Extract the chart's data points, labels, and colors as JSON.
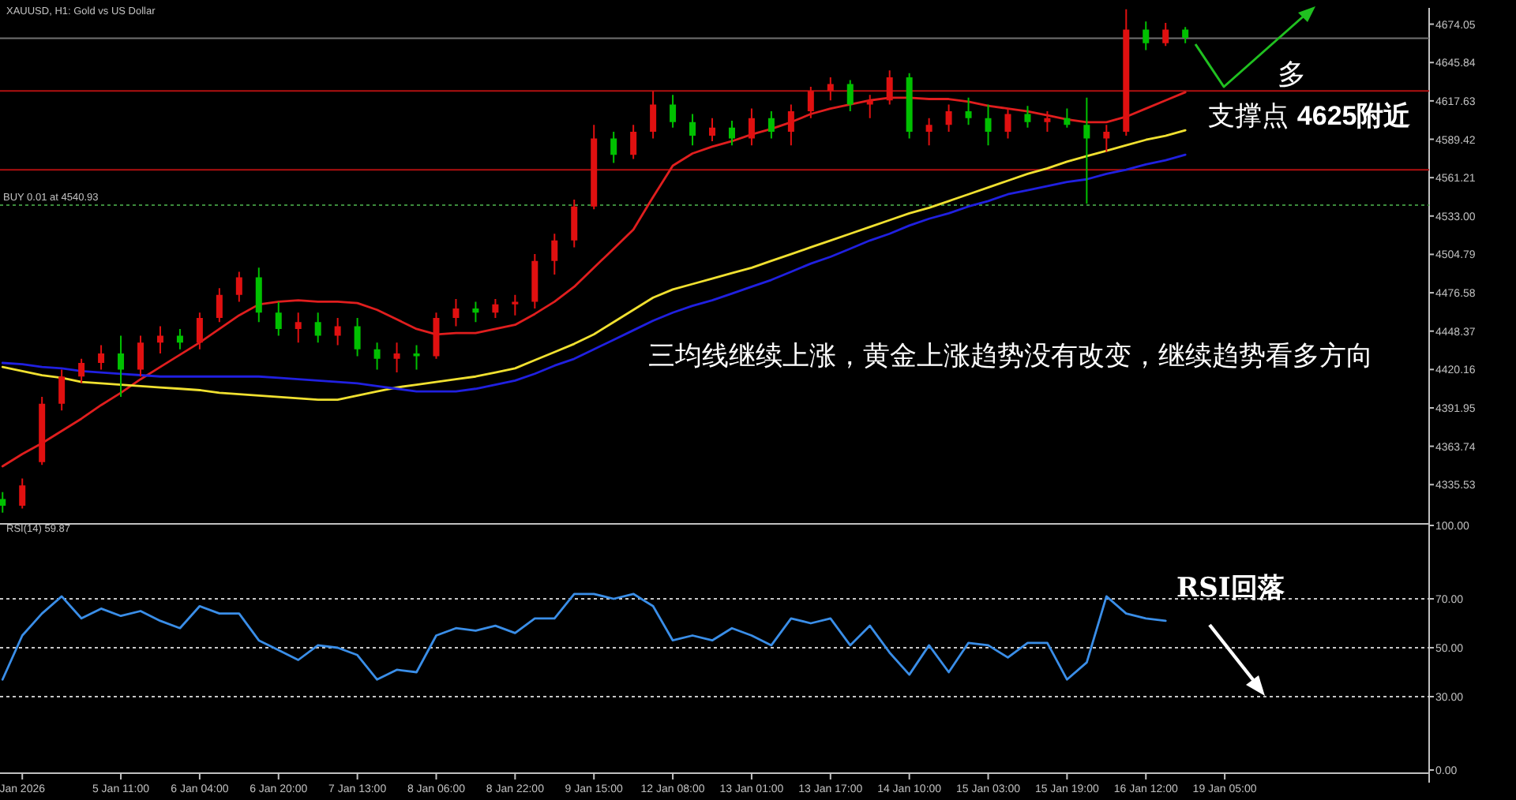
{
  "chart_data": [
    {
      "type": "candlestick",
      "title": "XAUUSD, H1:  Gold vs US Dollar",
      "categories": [
        null,
        null,
        null,
        null,
        null,
        null,
        null,
        null,
        null,
        null,
        null,
        null,
        null,
        null,
        null,
        null,
        null,
        null,
        null,
        null,
        null,
        null,
        null,
        null,
        null,
        null,
        null,
        null,
        null,
        null,
        null,
        null,
        null,
        null,
        null,
        null,
        null,
        null,
        null,
        null,
        null,
        null,
        null,
        null,
        null,
        null,
        null,
        null,
        null,
        null,
        null,
        null,
        null,
        null,
        null,
        null,
        null,
        null,
        null,
        null,
        null,
        null,
        null
      ],
      "ohlc": [
        [
          4325,
          4330,
          4315,
          4320
        ],
        [
          4320,
          4340,
          4318,
          4335
        ],
        [
          4352,
          4400,
          4350,
          4395
        ],
        [
          4395,
          4420,
          4390,
          4415
        ],
        [
          4415,
          4428,
          4410,
          4425
        ],
        [
          4425,
          4438,
          4420,
          4432
        ],
        [
          4432,
          4445,
          4400,
          4420
        ],
        [
          4420,
          4445,
          4415,
          4440
        ],
        [
          4440,
          4452,
          4432,
          4445
        ],
        [
          4445,
          4450,
          4435,
          4440
        ],
        [
          4440,
          4462,
          4435,
          4458
        ],
        [
          4458,
          4480,
          4455,
          4475
        ],
        [
          4475,
          4492,
          4470,
          4488
        ],
        [
          4488,
          4495,
          4455,
          4462
        ],
        [
          4462,
          4470,
          4445,
          4450
        ],
        [
          4450,
          4462,
          4440,
          4455
        ],
        [
          4455,
          4462,
          4440,
          4445
        ],
        [
          4445,
          4458,
          4438,
          4452
        ],
        [
          4452,
          4458,
          4430,
          4435
        ],
        [
          4435,
          4440,
          4420,
          4428
        ],
        [
          4428,
          4440,
          4418,
          4432
        ],
        [
          4432,
          4438,
          4420,
          4430
        ],
        [
          4430,
          4462,
          4428,
          4458
        ],
        [
          4458,
          4472,
          4452,
          4465
        ],
        [
          4465,
          4470,
          4455,
          4462
        ],
        [
          4462,
          4472,
          4458,
          4468
        ],
        [
          4468,
          4475,
          4460,
          4470
        ],
        [
          4470,
          4505,
          4465,
          4500
        ],
        [
          4500,
          4520,
          4490,
          4515
        ],
        [
          4515,
          4545,
          4510,
          4540
        ],
        [
          4540,
          4600,
          4538,
          4590
        ],
        [
          4590,
          4595,
          4572,
          4578
        ],
        [
          4578,
          4600,
          4575,
          4595
        ],
        [
          4595,
          4625,
          4590,
          4615
        ],
        [
          4615,
          4622,
          4598,
          4602
        ],
        [
          4602,
          4608,
          4585,
          4592
        ],
        [
          4592,
          4605,
          4588,
          4598
        ],
        [
          4598,
          4603,
          4585,
          4590
        ],
        [
          4590,
          4612,
          4585,
          4605
        ],
        [
          4605,
          4610,
          4590,
          4595
        ],
        [
          4595,
          4615,
          4585,
          4610
        ],
        [
          4610,
          4628,
          4605,
          4625
        ],
        [
          4625,
          4635,
          4618,
          4630
        ],
        [
          4630,
          4633,
          4610,
          4615
        ],
        [
          4615,
          4622,
          4605,
          4618
        ],
        [
          4618,
          4640,
          4615,
          4635
        ],
        [
          4635,
          4638,
          4590,
          4595
        ],
        [
          4595,
          4605,
          4585,
          4600
        ],
        [
          4600,
          4615,
          4595,
          4610
        ],
        [
          4610,
          4620,
          4600,
          4605
        ],
        [
          4605,
          4615,
          4585,
          4595
        ],
        [
          4595,
          4612,
          4590,
          4608
        ],
        [
          4608,
          4614,
          4598,
          4602
        ],
        [
          4602,
          4610,
          4595,
          4605
        ],
        [
          4605,
          4612,
          4598,
          4600
        ],
        [
          4600,
          4620,
          4542,
          4590
        ],
        [
          4590,
          4600,
          4580,
          4595
        ],
        [
          4595,
          4685,
          4592,
          4670
        ],
        [
          4670,
          4676,
          4655,
          4660
        ],
        [
          4660,
          4675,
          4658,
          4670
        ],
        [
          4670,
          4672,
          4660,
          4664
        ],
        null,
        null
      ],
      "colors": [
        "#00c000",
        "#e01010",
        "#e01010",
        "#e01010",
        "#e01010",
        "#e01010",
        "#00c000",
        "#e01010",
        "#e01010",
        "#00c000",
        "#e01010",
        "#e01010",
        "#e01010",
        "#00c000",
        "#00c000",
        "#e01010",
        "#00c000",
        "#e01010",
        "#00c000",
        "#00c000",
        "#e01010",
        "#00c000",
        "#e01010",
        "#e01010",
        "#00c000",
        "#e01010",
        "#e01010",
        "#e01010",
        "#e01010",
        "#e01010",
        "#e01010",
        "#00c000",
        "#e01010",
        "#e01010",
        "#00c000",
        "#00c000",
        "#e01010",
        "#00c000",
        "#e01010",
        "#00c000",
        "#e01010",
        "#e01010",
        "#e01010",
        "#00c000",
        "#e01010",
        "#e01010",
        "#00c000",
        "#e01010",
        "#e01010",
        "#00c000",
        "#00c000",
        "#e01010",
        "#00c000",
        "#e01010",
        "#00c000",
        "#00c000",
        "#e01010",
        "#e01010",
        "#00c000",
        "#e01010",
        "#00c000",
        null,
        null
      ],
      "series": [
        {
          "type": "line",
          "color": "#e01e1e",
          "values": [
            4349,
            4358,
            4366,
            4375,
            4384,
            4394,
            4403,
            4413,
            4422,
            4431,
            4440,
            4450,
            4460,
            4468,
            4470,
            4471,
            4470,
            4470,
            4469,
            4464,
            4457,
            4450,
            4446,
            4447,
            4447,
            4450,
            4453,
            4461,
            4470,
            4481,
            4495,
            4509,
            4523,
            4547,
            4570,
            4579,
            4584,
            4588,
            4593,
            4597,
            4602,
            4608,
            4612,
            4615,
            4618,
            4620,
            4620,
            4619,
            4619,
            4617,
            4614,
            4612,
            4610,
            4607,
            4604,
            4602,
            4602,
            4606,
            4612,
            4618,
            4624,
            null,
            null
          ]
        },
        {
          "type": "line",
          "color": "#f0e030",
          "values": [
            4422,
            4419,
            4416,
            4414,
            4411,
            4410,
            4409,
            4408,
            4407,
            4406,
            4405,
            4403,
            4402,
            4401,
            4400,
            4399,
            4398,
            4398,
            4401,
            4404,
            4407,
            4409,
            4411,
            4413,
            4415,
            4418,
            4421,
            4427,
            4433,
            4439,
            4446,
            4455,
            4464,
            4473,
            4479,
            4483,
            4487,
            4491,
            4495,
            4500,
            4505,
            4510,
            4515,
            4520,
            4525,
            4530,
            4535,
            4539,
            4544,
            4549,
            4554,
            4559,
            4564,
            4568,
            4573,
            4577,
            4581,
            4585,
            4589,
            4592,
            4596,
            null,
            null
          ]
        },
        {
          "type": "line",
          "color": "#2020e0",
          "values": [
            4425,
            4424,
            4422,
            4421,
            4419,
            4418,
            4417,
            4416,
            4415,
            4415,
            4415,
            4415,
            4415,
            4415,
            4414,
            4413,
            4412,
            4411,
            4410,
            4408,
            4406,
            4404,
            4404,
            4404,
            4406,
            4409,
            4412,
            4417,
            4423,
            4428,
            4435,
            4442,
            4449,
            4456,
            4462,
            4467,
            4471,
            4476,
            4481,
            4486,
            4492,
            4498,
            4503,
            4509,
            4515,
            4520,
            4526,
            4531,
            4535,
            4540,
            4544,
            4549,
            4552,
            4555,
            4558,
            4560,
            4564,
            4567,
            4571,
            4574,
            4578,
            null,
            null
          ]
        }
      ],
      "ylim": [
        4309,
        4686
      ],
      "yticks": [
        4335.53,
        4363.74,
        4391.95,
        4420.16,
        4448.37,
        4476.58,
        4504.79,
        {
          "value": 4533,
          "label": "4533.00"
        },
        4561.21,
        4589.42,
        4617.63,
        4645.84,
        4674.05
      ],
      "ref_lines": [
        {
          "axis": "y",
          "value": 4625,
          "color": "#b01010",
          "line_style": "solid"
        },
        {
          "axis": "y",
          "value": 4567,
          "color": "#b01010",
          "line_style": "solid"
        },
        {
          "axis": "y",
          "value": 4540.93,
          "label": "BUY 0.01 at 4540.93",
          "color": "#3c8c3c",
          "line_style": "dotted"
        },
        {
          "axis": "y",
          "value": 4663.6,
          "color": "#707070",
          "line_style": "solid"
        }
      ],
      "annotations": [
        "三均线继续上涨，黄金上涨趋势没有改变，继续趋势看多方向",
        "多",
        "支撑点  **4625附近**"
      ],
      "tick_labels": "y"
    },
    {
      "type": "line",
      "title": "RSI(14) 59.87",
      "categories": [
        null,
        "Jan 2026",
        null,
        null,
        null,
        null,
        "5 Jan 11:00",
        null,
        null,
        null,
        "6 Jan 04:00",
        null,
        null,
        null,
        "6 Jan 20:00",
        null,
        null,
        null,
        "7 Jan 13:00",
        null,
        null,
        null,
        "8 Jan 06:00",
        null,
        null,
        null,
        "8 Jan 22:00",
        null,
        null,
        null,
        "9 Jan 15:00",
        null,
        null,
        null,
        "12 Jan 08:00",
        null,
        null,
        null,
        "13 Jan 01:00",
        null,
        null,
        null,
        "13 Jan 17:00",
        null,
        null,
        null,
        "14 Jan 10:00",
        null,
        null,
        null,
        "15 Jan 03:00",
        null,
        null,
        null,
        "15 Jan 19:00",
        null,
        null,
        null,
        "16 Jan 12:00",
        null,
        null,
        null,
        "19 Jan 05:00"
      ],
      "series": [
        {
          "color": "#3a8ee8",
          "values": [
            37,
            55,
            64,
            71,
            62,
            66,
            63,
            65,
            61,
            58,
            67,
            64,
            64,
            53,
            49,
            45,
            51,
            50,
            47,
            37,
            41,
            40,
            55,
            58,
            57,
            59,
            56,
            62,
            62,
            72,
            72,
            70,
            72,
            67,
            53,
            55,
            53,
            58,
            55,
            51,
            62,
            60,
            62,
            51,
            59,
            48,
            39,
            51,
            40,
            52,
            51,
            46,
            52,
            52,
            37,
            44,
            71,
            64,
            62,
            61,
            null,
            null,
            null
          ]
        }
      ],
      "ylim": [
        0,
        100
      ],
      "yticks": [
        {
          "value": 0,
          "label": "0.00"
        },
        {
          "value": 30,
          "label": "30.00"
        },
        {
          "value": 50,
          "label": "50.00"
        },
        {
          "value": 70,
          "label": "70.00"
        },
        {
          "value": 100,
          "label": "100.00"
        }
      ],
      "ref_lines": [
        {
          "axis": "y",
          "value": 70,
          "color": "#c8c8c8",
          "line_style": "dotted"
        },
        {
          "axis": "y",
          "value": 50,
          "color": "#c8c8c8",
          "line_style": "dotted"
        },
        {
          "axis": "y",
          "value": 30,
          "color": "#c8c8c8",
          "line_style": "dotted"
        }
      ],
      "annotations": [
        "RSI回落"
      ]
    }
  ]
}
